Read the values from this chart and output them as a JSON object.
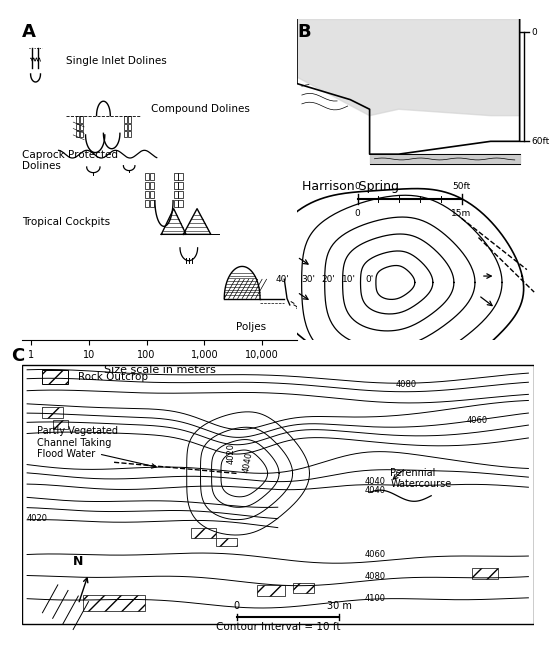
{
  "panel_A_label": "A",
  "panel_B_label": "B",
  "panel_C_label": "C",
  "panel_A_features": [
    "Single Inlet Dolines",
    "Compound Dolines",
    "Caprock Protected\nDolines",
    "Tropical Cockpits",
    "Poljes"
  ],
  "panel_A_xlabel": "Size scale in meters",
  "panel_A_xticks": [
    1,
    10,
    100,
    1000,
    10000
  ],
  "panel_A_xtick_labels": [
    "1",
    "10",
    "100",
    "1,000",
    "10,000"
  ],
  "panel_B_title": "Harrison Spring",
  "panel_B_depth_top": "0",
  "panel_B_depth_bot": "60ft",
  "panel_B_scale_ft": "50ft",
  "panel_B_scale_m": "15m",
  "panel_B_contour_labels": [
    "40'",
    "30'",
    "20'",
    "10'",
    "0'"
  ],
  "panel_C_legend": "Rock Outcrop",
  "panel_C_label1": "Partly Vegetated\nChannel Taking\nFlood Water",
  "panel_C_label2": "Perennial\nWatercourse",
  "panel_C_scale": "30 m",
  "panel_C_contour_note": "Contour Interval = 10 ft",
  "bg_color": "#ffffff",
  "lc": "#000000"
}
